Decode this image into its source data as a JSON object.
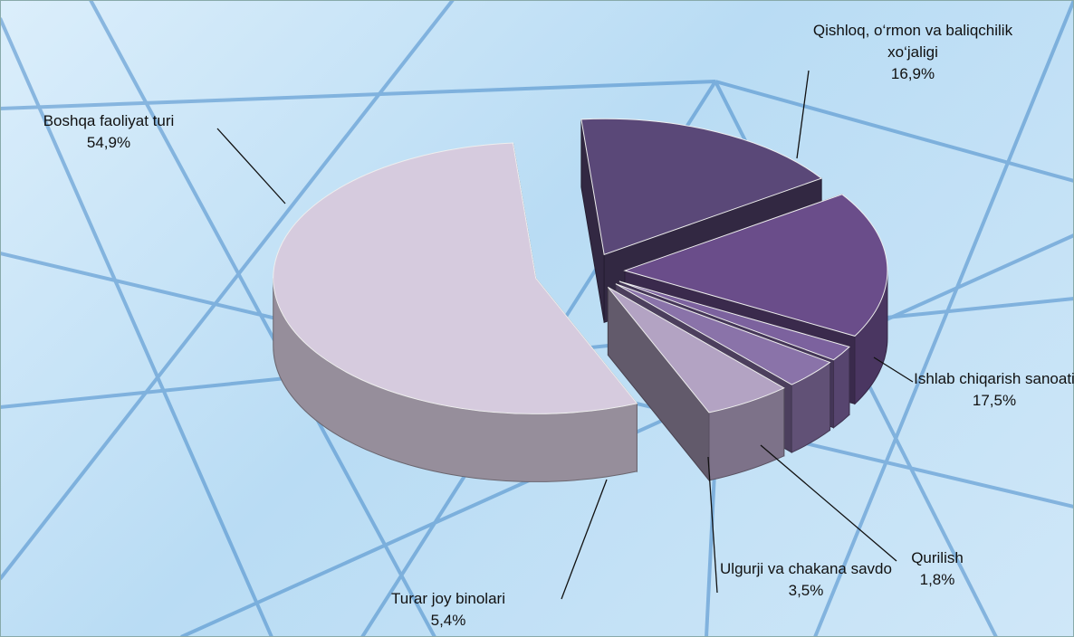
{
  "chart_data": {
    "type": "pie",
    "categories": [
      "Qishloq, o‘rmon va baliqchilik xo‘jaligi",
      "Ishlab chiqarish sanoati",
      "Qurilish",
      "Ulgurji va chakana savdo",
      "Turar joy binolari",
      "Boshqa faoliyat turi"
    ],
    "values": [
      16.9,
      17.5,
      1.8,
      3.5,
      5.4,
      54.9
    ],
    "value_labels": [
      "16,9%",
      "17,5%",
      "1,8%",
      "3,5%",
      "5,4%",
      "54,9%"
    ],
    "colors": [
      "#5a4878",
      "#6a4d8a",
      "#7c629e",
      "#8a73a9",
      "#b3a3c3",
      "#d6cbde"
    ]
  }
}
